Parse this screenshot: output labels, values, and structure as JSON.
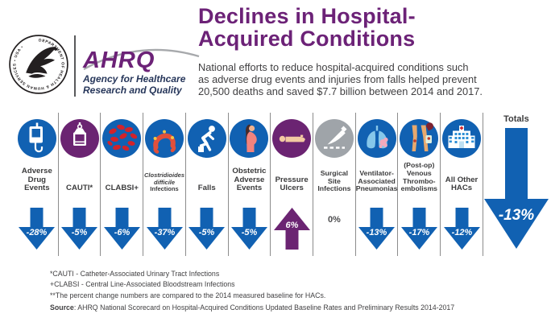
{
  "chart_data": {
    "type": "table",
    "title": "Declines in Hospital-Acquired Conditions",
    "subtitle": "National efforts to reduce hospital-acquired conditions such as adverse drug events and injuries from falls helped prevent 20,500 deaths and saved $7.7 billion between 2014 and 2017.",
    "unit": "percent change vs 2014 measured baseline",
    "categories": [
      "Adverse Drug Events",
      "CAUTI",
      "CLABSI",
      "Clostridioides difficile Infections",
      "Falls",
      "Obstetric Adverse Events",
      "Pressure Ulcers",
      "Surgical Site Infections",
      "Ventilator-Associated Pneumonias",
      "(Post-op) Venous Thromboembolisms",
      "All Other HACs",
      "Totals"
    ],
    "values": [
      -28,
      -5,
      -6,
      -37,
      -5,
      -5,
      6,
      0,
      -13,
      -17,
      -12,
      -13
    ]
  },
  "colors": {
    "blue": "#1161b2",
    "purple": "#6b2472",
    "gray": "#9fa4a9",
    "title_purple": "#6c2277"
  },
  "header": {
    "hhs_seal_text": "DEPARTMENT OF HEALTH & HUMAN SERVICES • USA •",
    "ahrq_acronym": "AHRQ",
    "ahrq_line1": "Agency for Healthcare",
    "ahrq_line2": "Research and Quality",
    "title_line1": "Declines in Hospital-",
    "title_line2": "Acquired Conditions",
    "subtitle_lines": [
      "National efforts to reduce hospital-acquired conditions such",
      "as adverse drug events and injuries from falls helped prevent",
      "20,500 deaths and saved $7.7 billion between 2014 and 2017."
    ]
  },
  "columns": [
    {
      "id": "adverse-drug-events",
      "icon": "iv-bag-icon",
      "circle_color": "#1161b2",
      "label_lines": [
        "Adverse",
        "Drug",
        "Events"
      ],
      "label_size": "m",
      "change": "-28%",
      "direction": "down",
      "arrow_color": "#1161b2"
    },
    {
      "id": "cauti",
      "icon": "catheter-bag-icon",
      "circle_color": "#6b2472",
      "label_lines": [
        "CAUTI*"
      ],
      "label_size": "m",
      "change": "-5%",
      "direction": "down",
      "arrow_color": "#1161b2"
    },
    {
      "id": "clabsi",
      "icon": "blood-cells-icon",
      "circle_color": "#1161b2",
      "label_lines": [
        "CLABSI+"
      ],
      "label_size": "m",
      "change": "-6%",
      "direction": "down",
      "arrow_color": "#1161b2"
    },
    {
      "id": "c-difficile",
      "icon": "intestine-icon",
      "circle_color": "#1161b2",
      "label_lines": [
        "Clostridioides",
        "difficile",
        "Infections"
      ],
      "italic_lines": [
        0,
        1
      ],
      "label_size": "xs",
      "change": "-37%",
      "direction": "down",
      "arrow_color": "#1161b2"
    },
    {
      "id": "falls",
      "icon": "falling-person-icon",
      "circle_color": "#1161b2",
      "label_lines": [
        "Falls"
      ],
      "label_size": "m",
      "change": "-5%",
      "direction": "down",
      "arrow_color": "#1161b2"
    },
    {
      "id": "obstetric-adverse-events",
      "icon": "pregnant-woman-icon",
      "circle_color": "#1161b2",
      "label_lines": [
        "Obstetric",
        "Adverse",
        "Events"
      ],
      "label_size": "m",
      "change": "-5%",
      "direction": "down",
      "arrow_color": "#1161b2"
    },
    {
      "id": "pressure-ulcers",
      "icon": "person-lying-icon",
      "circle_color": "#6b2472",
      "label_lines": [
        "Pressure",
        "Ulcers"
      ],
      "label_size": "m",
      "change": "6%",
      "direction": "up",
      "arrow_color": "#6b2472"
    },
    {
      "id": "surgical-site-infections",
      "icon": "scalpel-icon",
      "circle_color": "#9fa4a9",
      "label_lines": [
        "Surgical",
        "Site",
        "Infections"
      ],
      "label_size": "s",
      "change": "0%",
      "direction": "none"
    },
    {
      "id": "ventilator-associated-pneumonias",
      "icon": "lungs-icon",
      "circle_color": "#1161b2",
      "label_lines": [
        "Ventilator-",
        "Associated",
        "Pneumonias"
      ],
      "label_size": "s",
      "change": "-13%",
      "direction": "down",
      "arrow_color": "#1161b2"
    },
    {
      "id": "venous-thromboembolisms",
      "icon": "legs-icon",
      "circle_color": "#1161b2",
      "label_lines": [
        "(Post-op)",
        "Venous",
        "Thrombo-",
        "embolisms"
      ],
      "label_size": "s",
      "change": "-17%",
      "direction": "down",
      "arrow_color": "#1161b2"
    },
    {
      "id": "all-other-hacs",
      "icon": "hospital-building-icon",
      "circle_color": "#1161b2",
      "label_lines": [
        "All Other",
        "HACs"
      ],
      "label_size": "m",
      "change": "-12%",
      "direction": "down",
      "arrow_color": "#1161b2"
    }
  ],
  "totals": {
    "label": "Totals",
    "change": "-13%",
    "direction": "down",
    "arrow_color": "#1161b2"
  },
  "footnotes": [
    "*CAUTI - Catheter-Associated Urinary Tract Infections",
    "+CLABSI - Central Line-Associated Bloodstream Infections",
    "**The percent change numbers are compared to the 2014 measured baseline for HACs."
  ],
  "source": {
    "label": "Source",
    "text": ": AHRQ National Scorecard on Hospital-Acquired Conditions Updated Baseline Rates and Preliminary Results 2014-2017"
  }
}
